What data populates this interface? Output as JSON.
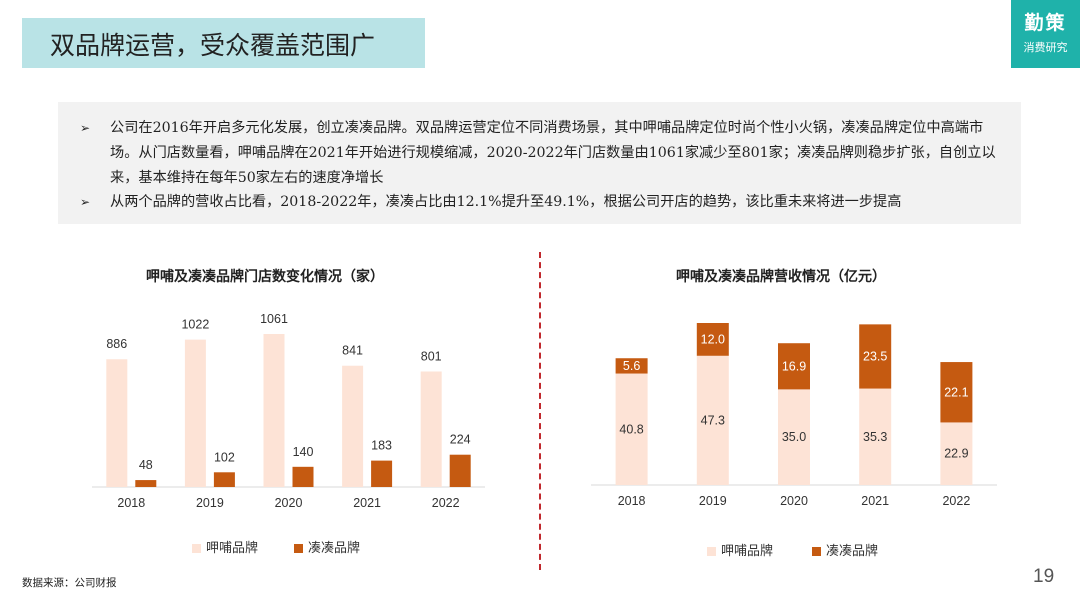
{
  "header": {
    "title": "双品牌运营，受众覆盖范围广"
  },
  "brand": {
    "main": "勤策",
    "sub": "消费研究"
  },
  "summary": {
    "bullet1": "公司在2016年开启多元化发展，创立凑凑品牌。双品牌运营定位不同消费场景，其中呷哺品牌定位时尚个性小火锅，凑凑品牌定位中高端市场。从门店数量看，呷哺品牌在2021年开始进行规模缩减，2020-2022年门店数量由1061家减少至801家；凑凑品牌则稳步扩张，自创立以来，基本维持在每年50家左右的速度净增长",
    "bullet2": "从两个品牌的营收占比看，2018-2022年，凑凑占比由12.1%提升至49.1%，根据公司开店的趋势，该比重未来将进一步提高",
    "arrow": "➢"
  },
  "colors": {
    "xiabu": "#fde3d6",
    "coucou": "#c55a11",
    "accent": "#b9e3e6",
    "brand": "#1fb2aa",
    "divider": "#c0282d"
  },
  "chart_data": [
    {
      "type": "bar",
      "title": "呷哺及凑凑品牌门店数变化情况（家）",
      "categories": [
        "2018",
        "2019",
        "2020",
        "2021",
        "2022"
      ],
      "series": [
        {
          "name": "呷哺品牌",
          "values": [
            886,
            1022,
            1061,
            841,
            801
          ]
        },
        {
          "name": "凑凑品牌",
          "values": [
            48,
            102,
            140,
            183,
            224
          ]
        }
      ],
      "ylim": [
        0,
        1200
      ],
      "legend": "bottom",
      "grid": false
    },
    {
      "type": "bar",
      "stacked": true,
      "title": "呷哺及凑凑品牌营收情况（亿元）",
      "categories": [
        "2018",
        "2019",
        "2020",
        "2021",
        "2022"
      ],
      "series": [
        {
          "name": "呷哺品牌",
          "values": [
            40.8,
            47.3,
            35.0,
            35.3,
            22.9
          ]
        },
        {
          "name": "凑凑品牌",
          "values": [
            5.6,
            12.0,
            16.9,
            23.5,
            22.1
          ]
        }
      ],
      "ylim": [
        0,
        70
      ],
      "legend": "bottom",
      "grid": false
    }
  ],
  "footer": {
    "source": "数据来源：公司财报",
    "page": "19"
  }
}
